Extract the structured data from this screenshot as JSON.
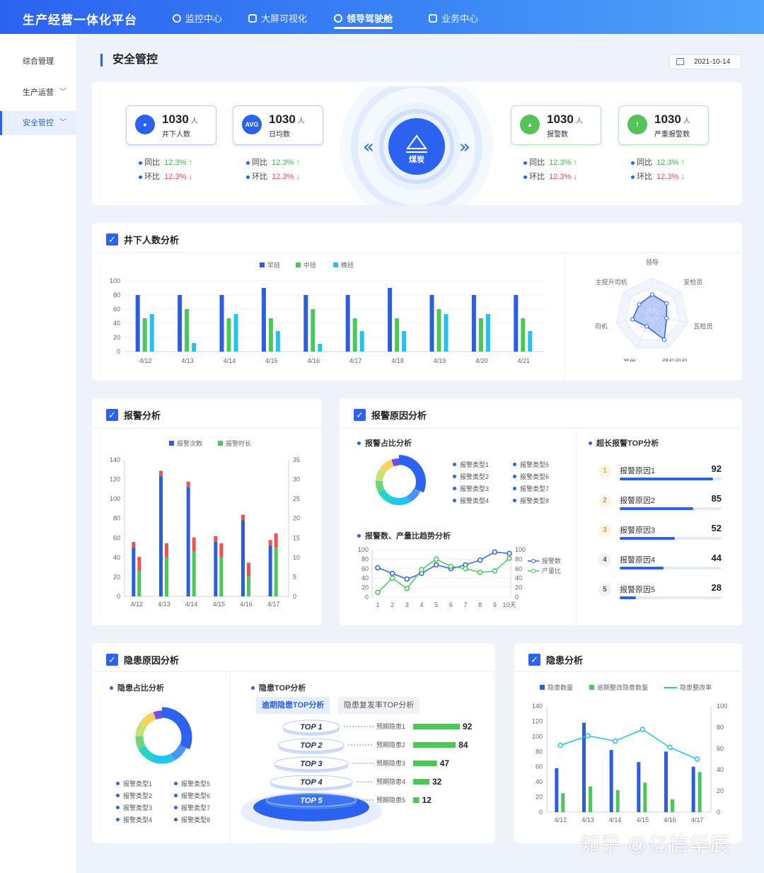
{
  "app": {
    "title": "生产经营一体化平台"
  },
  "nav": [
    {
      "label": "监控中心",
      "icon": "monitor-icon"
    },
    {
      "label": "大屏可视化",
      "icon": "screen-icon"
    },
    {
      "label": "领导驾驶舱",
      "icon": "cockpit-icon",
      "active": true
    },
    {
      "label": "业务中心",
      "icon": "business-icon"
    }
  ],
  "sidebar": {
    "items": [
      {
        "label": "综合管理"
      },
      {
        "label": "生产运营",
        "chevron": true
      },
      {
        "label": "安全管控",
        "chevron": true,
        "active": true
      }
    ]
  },
  "page": {
    "title": "安全管控",
    "date": "2021-10-14"
  },
  "stats": {
    "cards": [
      {
        "value": "1030",
        "unit": "人",
        "label": "井下人数",
        "icon": "miner-icon",
        "ico_text": "",
        "cmp_yoy": "12.3%",
        "cmp_mom": "12.3%"
      },
      {
        "value": "1030",
        "unit": "人",
        "label": "日均数",
        "icon": "avg-icon",
        "ico_text": "AVG",
        "cmp_yoy": "12.3%",
        "cmp_mom": "12.3%"
      },
      {
        "value": "1030",
        "unit": "人",
        "label": "报警数",
        "icon": "alarm-icon",
        "ico_text": "",
        "cmp_yoy": "12.3%",
        "cmp_mom": "12.3%"
      },
      {
        "value": "1030",
        "unit": "人",
        "label": "严重报警数",
        "icon": "warning-icon",
        "ico_text": "",
        "cmp_yoy": "12.3%",
        "cmp_mom": "12.3%"
      }
    ],
    "yoy_label": "同比",
    "mom_label": "环比",
    "center_label": "煤炭"
  },
  "underground": {
    "title": "井下人数分析",
    "chart_data": {
      "type": "bar",
      "categories": [
        "4/12",
        "4/13",
        "4/14",
        "4/15",
        "4/16",
        "4/17",
        "4/18",
        "4/19",
        "4/20",
        "4/21"
      ],
      "series": [
        {
          "name": "早班",
          "color": "#2b5fe0",
          "values": [
            80,
            80,
            80,
            90,
            80,
            80,
            90,
            80,
            80,
            80
          ]
        },
        {
          "name": "中班",
          "color": "#4cc75a",
          "values": [
            47,
            60,
            47,
            47,
            60,
            47,
            47,
            60,
            47,
            47
          ]
        },
        {
          "name": "晚班",
          "color": "#22c4ee",
          "values": [
            53,
            12,
            53,
            29,
            11,
            29,
            29,
            53,
            53,
            29
          ]
        }
      ],
      "yticks": [
        0,
        20,
        40,
        60,
        80,
        100
      ],
      "ylim": [
        0,
        100
      ]
    },
    "radar": {
      "chart_data": {
        "type": "radar",
        "axes": [
          "领导",
          "安检员",
          "瓦检员",
          "煤机司机",
          "其他",
          "司机",
          "主提升司机"
        ],
        "values": [
          0.55,
          0.5,
          0.4,
          0.75,
          0.35,
          0.55,
          0.45
        ]
      }
    }
  },
  "alarm": {
    "title": "报警分析",
    "chart_data": {
      "type": "bar",
      "categories": [
        "4/12",
        "4/13",
        "4/14",
        "4/15",
        "4/16",
        "4/17"
      ],
      "series": [
        {
          "name": "报警次数",
          "color": "#2b5fe0",
          "values": [
            50,
            123,
            112,
            56,
            78,
            52
          ]
        },
        {
          "name": "报警时长",
          "color": "#4cc75a",
          "values": [
            6.5,
            10,
            11.5,
            10,
            5,
            12.5
          ]
        }
      ],
      "overflow_color": "#ef5350",
      "y_left": [
        0,
        20,
        40,
        60,
        80,
        100,
        120,
        140
      ],
      "y_right": [
        0,
        5,
        10,
        15,
        20,
        25,
        30,
        35
      ],
      "ylim_left": [
        0,
        140
      ],
      "ylim_right": [
        0,
        35
      ]
    }
  },
  "alarm_cause": {
    "title": "报警原因分析",
    "ratio_title": "报警占比分析",
    "ratio_legend": [
      "报警类型1",
      "报警类型2",
      "报警类型3",
      "报警类型4",
      "报警类型5",
      "报警类型6",
      "报警类型7",
      "报警类型8"
    ],
    "ratio_colors": [
      "#2b63f0",
      "#4b93f7",
      "#22c4ee",
      "#1fd6c9",
      "#6ed37a",
      "#c6e270",
      "#f4d35e",
      "#6f4de8"
    ],
    "ratio_values": [
      30,
      10,
      14,
      10,
      8,
      8,
      10,
      5
    ],
    "trend_title": "报警数、产量比趋势分析",
    "trend": {
      "chart_data": {
        "type": "line",
        "x": [
          "1",
          "2",
          "3",
          "4",
          "5",
          "6",
          "7",
          "8",
          "9",
          "10天"
        ],
        "series": [
          {
            "name": "报警数",
            "color": "#2b63f0",
            "values": [
              62,
              50,
              38,
              50,
              68,
              60,
              68,
              78,
              95,
              92
            ]
          },
          {
            "name": "产量比",
            "color": "#4cc75a",
            "values": [
              10,
              40,
              18,
              58,
              80,
              65,
              60,
              52,
              55,
              82
            ]
          }
        ],
        "yticks": [
          0,
          20,
          40,
          60,
          80,
          100
        ]
      }
    },
    "top_title": "超长报警TOP分析",
    "top": [
      {
        "rank": "1",
        "label": "报警原因1",
        "value": 92,
        "pct": 0.92,
        "badge": "#f5b800"
      },
      {
        "rank": "2",
        "label": "报警原因2",
        "value": 85,
        "pct": 0.72,
        "badge": "#8f9bb3"
      },
      {
        "rank": "3",
        "label": "报警原因3",
        "value": 52,
        "pct": 0.54,
        "badge": "#e8904c"
      },
      {
        "rank": "4",
        "label": "报警原因4",
        "value": 44,
        "pct": 0.43,
        "badge": ""
      },
      {
        "rank": "5",
        "label": "报警原因5",
        "value": 28,
        "pct": 0.16,
        "badge": ""
      }
    ]
  },
  "hazard_cause": {
    "title": "隐患原因分析",
    "ratio_title": "隐患占比分析",
    "legend": [
      "报警类型1",
      "报警类型2",
      "报警类型3",
      "报警类型4",
      "报警类型5",
      "报警类型6",
      "报警类型7",
      "报警类型8"
    ],
    "top_title": "隐患TOP分析",
    "tabs": [
      "逾期隐患TOP分析",
      "隐患复发率TOP分析"
    ],
    "top": [
      {
        "rank": "TOP 1",
        "label": "预期隐患1",
        "value": 92
      },
      {
        "rank": "TOP 2",
        "label": "预期隐患2",
        "value": 84
      },
      {
        "rank": "TOP 3",
        "label": "预期隐患3",
        "value": 47
      },
      {
        "rank": "TOP 4",
        "label": "预期隐患4",
        "value": 32
      },
      {
        "rank": "TOP 5",
        "label": "预期隐患5",
        "value": 12
      }
    ]
  },
  "hazard": {
    "title": "隐患分析",
    "chart_data": {
      "type": "bar",
      "categories": [
        "4/12",
        "4/13",
        "4/14",
        "4/15",
        "4/16",
        "4/17"
      ],
      "series": [
        {
          "name": "隐患数量",
          "color": "#2b5fe0",
          "values": [
            58,
            118,
            82,
            66,
            80,
            60
          ]
        },
        {
          "name": "逾期整改隐患数量",
          "color": "#4cc75a",
          "values": [
            25,
            34,
            29,
            39,
            17,
            53
          ]
        },
        {
          "name": "隐患整改率",
          "color": "#22c4ee",
          "values": [
            63,
            72,
            67,
            78,
            61,
            50
          ]
        }
      ],
      "y_left": [
        0,
        20,
        40,
        60,
        80,
        100,
        120,
        140
      ],
      "y_right": [
        0,
        20,
        40,
        60,
        80,
        100
      ],
      "ylim_left": [
        0,
        140
      ],
      "ylim_right": [
        0,
        100
      ]
    }
  },
  "watermark": "知乎 @亿信华辰"
}
